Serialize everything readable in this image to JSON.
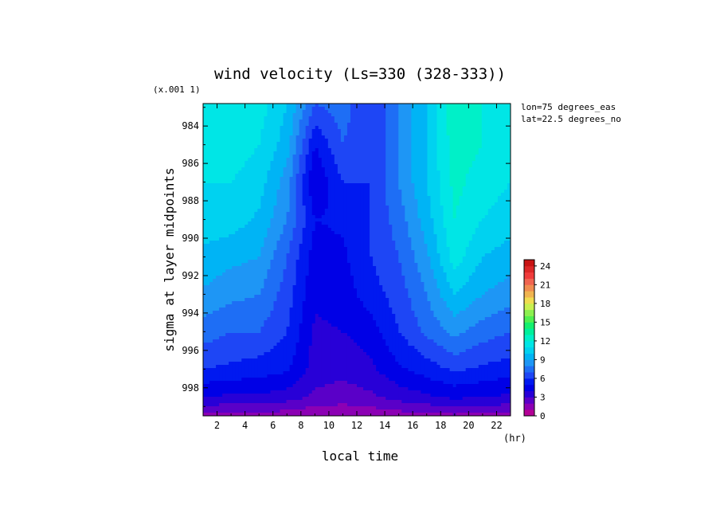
{
  "chart_data": {
    "type": "heatmap",
    "title": "wind velocity (Ls=330 (328-333))",
    "ylabel": "sigma at layer midpoints",
    "xlabel": "local time",
    "x_units": "(hr)",
    "y_scale_note": "(x.001 1)",
    "annotations": [
      "lon=75 degrees_eas",
      "lat=22.5 degrees_no"
    ],
    "x_ticks": [
      2,
      4,
      6,
      8,
      10,
      12,
      14,
      16,
      18,
      20,
      22
    ],
    "y_ticks": [
      984,
      986,
      988,
      990,
      992,
      994,
      996,
      998
    ],
    "xlim": [
      1,
      23
    ],
    "ylim": [
      999.5,
      982.8
    ],
    "x": [
      1,
      3,
      5,
      7,
      9,
      11,
      13,
      15,
      17,
      19,
      21,
      23
    ],
    "y": [
      982.8,
      985,
      987,
      989,
      991,
      993,
      995,
      997,
      998.5,
      999.5
    ],
    "z": [
      [
        11.5,
        12,
        11.5,
        10,
        7,
        7.5,
        6,
        8,
        10,
        13,
        12,
        11.5
      ],
      [
        11.5,
        11.5,
        11,
        9.5,
        5,
        7,
        6,
        8,
        10,
        12.5,
        12,
        11.5
      ],
      [
        11.0,
        11.0,
        10.5,
        8.5,
        4,
        6,
        6,
        8,
        10,
        12.3,
        11.5,
        11
      ],
      [
        10.5,
        10.5,
        9.8,
        8,
        5,
        5.2,
        6,
        7.5,
        9.5,
        12,
        11,
        10.5
      ],
      [
        9.8,
        9.3,
        9,
        7,
        4.5,
        4.8,
        6,
        7,
        8.8,
        11.5,
        10,
        9.5
      ],
      [
        8.8,
        8.3,
        8,
        6.5,
        4.2,
        4.5,
        5.5,
        6.5,
        8,
        10,
        9,
        8.5
      ],
      [
        7.5,
        7,
        7,
        6,
        3.8,
        4,
        4.5,
        6,
        7.2,
        8.3,
        7.5,
        7
      ],
      [
        6,
        5.8,
        5.5,
        5.2,
        3.5,
        3.3,
        3.8,
        4.8,
        5.5,
        6.2,
        5.8,
        5.5
      ],
      [
        4,
        3.8,
        3.8,
        3.5,
        2.8,
        2.5,
        2.8,
        3.4,
        3.8,
        4.2,
        4.0,
        3.8
      ],
      [
        1.8,
        1.6,
        1.6,
        1.4,
        1.2,
        1.2,
        1.3,
        1.5,
        1.7,
        1.8,
        1.7,
        1.7
      ]
    ],
    "colorbar": {
      "ticks": [
        0,
        3,
        6,
        9,
        12,
        15,
        18,
        21,
        24
      ],
      "range": [
        0,
        25
      ],
      "step": 1,
      "colors": [
        "#b40096",
        "#8c00b4",
        "#5a00c8",
        "#2800d7",
        "#0000e6",
        "#0019f0",
        "#1e46f5",
        "#1e6ef5",
        "#1e96f5",
        "#00b4f5",
        "#00d2f0",
        "#00e6e6",
        "#00f0c8",
        "#00f09b",
        "#14f06e",
        "#50f050",
        "#8cf050",
        "#c8f050",
        "#f0dc50",
        "#f0b450",
        "#f08c50",
        "#f06450",
        "#f03c3c",
        "#dc2828",
        "#c81414"
      ]
    }
  }
}
